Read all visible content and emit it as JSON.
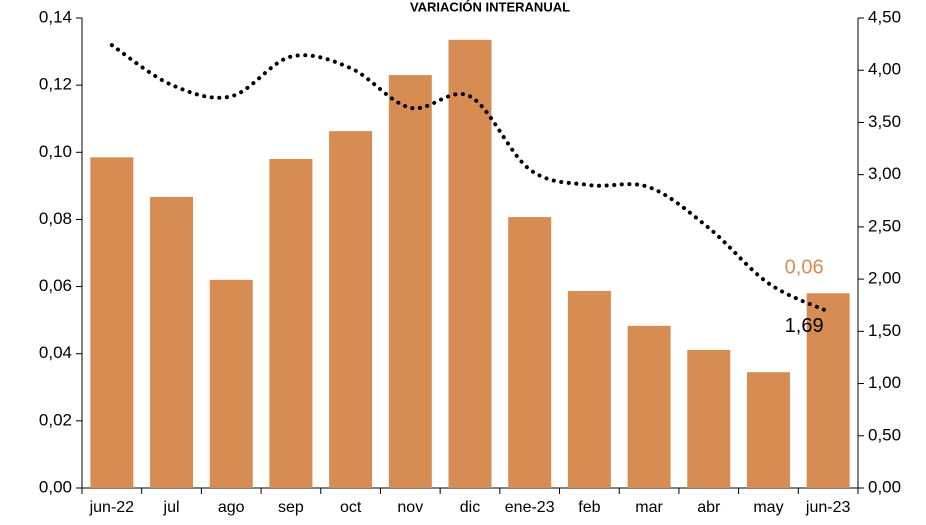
{
  "chart_data": {
    "type": "bar-line",
    "title": "VARIACIÓN INTERANUAL",
    "categories": [
      "jun-22",
      "jul",
      "ago",
      "sep",
      "oct",
      "nov",
      "dic",
      "ene-23",
      "feb",
      "mar",
      "abr",
      "may",
      "jun-23"
    ],
    "series": [
      {
        "type": "bar",
        "color": "#d68c52",
        "values": [
          0.0985,
          0.0867,
          0.062,
          0.098,
          0.1063,
          0.123,
          0.1335,
          0.0807,
          0.0587,
          0.0483,
          0.0411,
          0.0345,
          0.058
        ],
        "value_labels": [
          null,
          null,
          null,
          null,
          null,
          null,
          null,
          null,
          null,
          null,
          null,
          null,
          "0,06"
        ]
      },
      {
        "type": "line",
        "axis": "y2",
        "color": "#000000",
        "values": [
          4.24,
          3.86,
          3.75,
          4.13,
          4.02,
          3.64,
          3.75,
          3.05,
          2.9,
          2.88,
          2.49,
          1.96,
          1.69
        ],
        "value_labels": [
          null,
          null,
          null,
          null,
          null,
          null,
          null,
          null,
          null,
          null,
          null,
          null,
          "1,69"
        ]
      }
    ],
    "ylim": [
      0,
      0.14
    ],
    "yticks": [
      {
        "value": 0,
        "label": "0,00"
      },
      {
        "value": 0.02,
        "label": "0,02"
      },
      {
        "value": 0.04,
        "label": "0,04"
      },
      {
        "value": 0.06,
        "label": "0,06"
      },
      {
        "value": 0.08,
        "label": "0,08"
      },
      {
        "value": 0.1,
        "label": "0,10"
      },
      {
        "value": 0.12,
        "label": "0,12"
      },
      {
        "value": 0.14,
        "label": "0,14"
      }
    ],
    "y2lim": [
      0,
      4.5
    ],
    "y2ticks": [
      {
        "value": 0,
        "label": "0,00"
      },
      {
        "value": 0.5,
        "label": "0,50"
      },
      {
        "value": 1,
        "label": "1,00"
      },
      {
        "value": 1.5,
        "label": "1,50"
      },
      {
        "value": 2,
        "label": "2,00"
      },
      {
        "value": 2.5,
        "label": "2,50"
      },
      {
        "value": 3,
        "label": "3,00"
      },
      {
        "value": 3.5,
        "label": "3,50"
      },
      {
        "value": 4,
        "label": "4,00"
      },
      {
        "value": 4.5,
        "label": "4,50"
      }
    ]
  }
}
